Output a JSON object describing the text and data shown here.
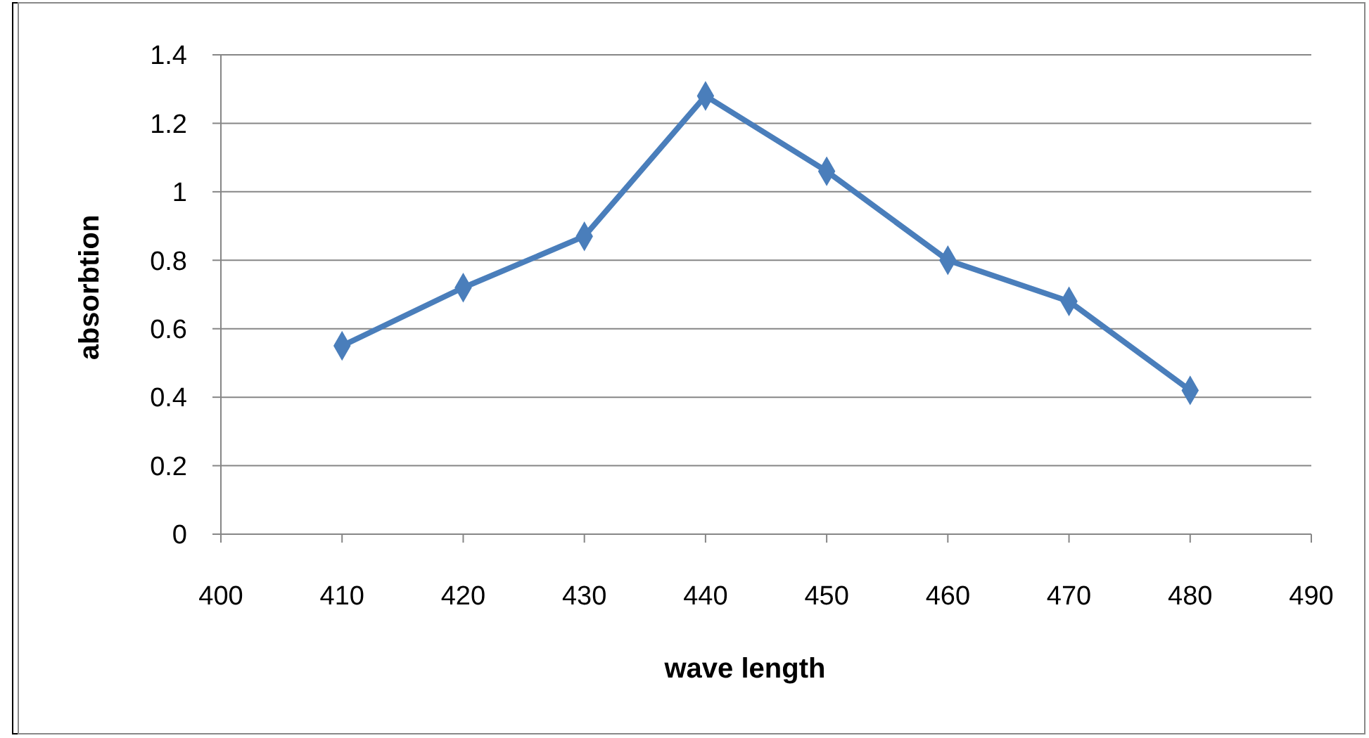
{
  "chart_data": {
    "type": "line",
    "xlabel": "wave length",
    "ylabel": "absorbtion",
    "x": [
      410,
      420,
      430,
      440,
      450,
      460,
      470,
      480
    ],
    "series": [
      {
        "color": "#4a7ebb",
        "values": [
          0.55,
          0.72,
          0.87,
          1.28,
          1.06,
          0.8,
          0.68,
          0.42
        ]
      }
    ],
    "xlim": [
      400,
      490
    ],
    "xticks": [
      400,
      410,
      420,
      430,
      440,
      450,
      460,
      470,
      480,
      490
    ],
    "ylim": [
      0,
      1.4
    ],
    "yticks": [
      0,
      {
        "value": 0.2,
        "label": "0.2"
      },
      {
        "value": 0.4,
        "label": "0.4"
      },
      {
        "value": 0.6,
        "label": "0.6"
      },
      {
        "value": 0.8,
        "label": "0.8"
      },
      1,
      {
        "value": 1.2,
        "label": "1.2"
      },
      {
        "value": 1.4,
        "label": "1.4"
      }
    ],
    "grid": "y",
    "marker": "diamond",
    "line_style": "solid"
  }
}
